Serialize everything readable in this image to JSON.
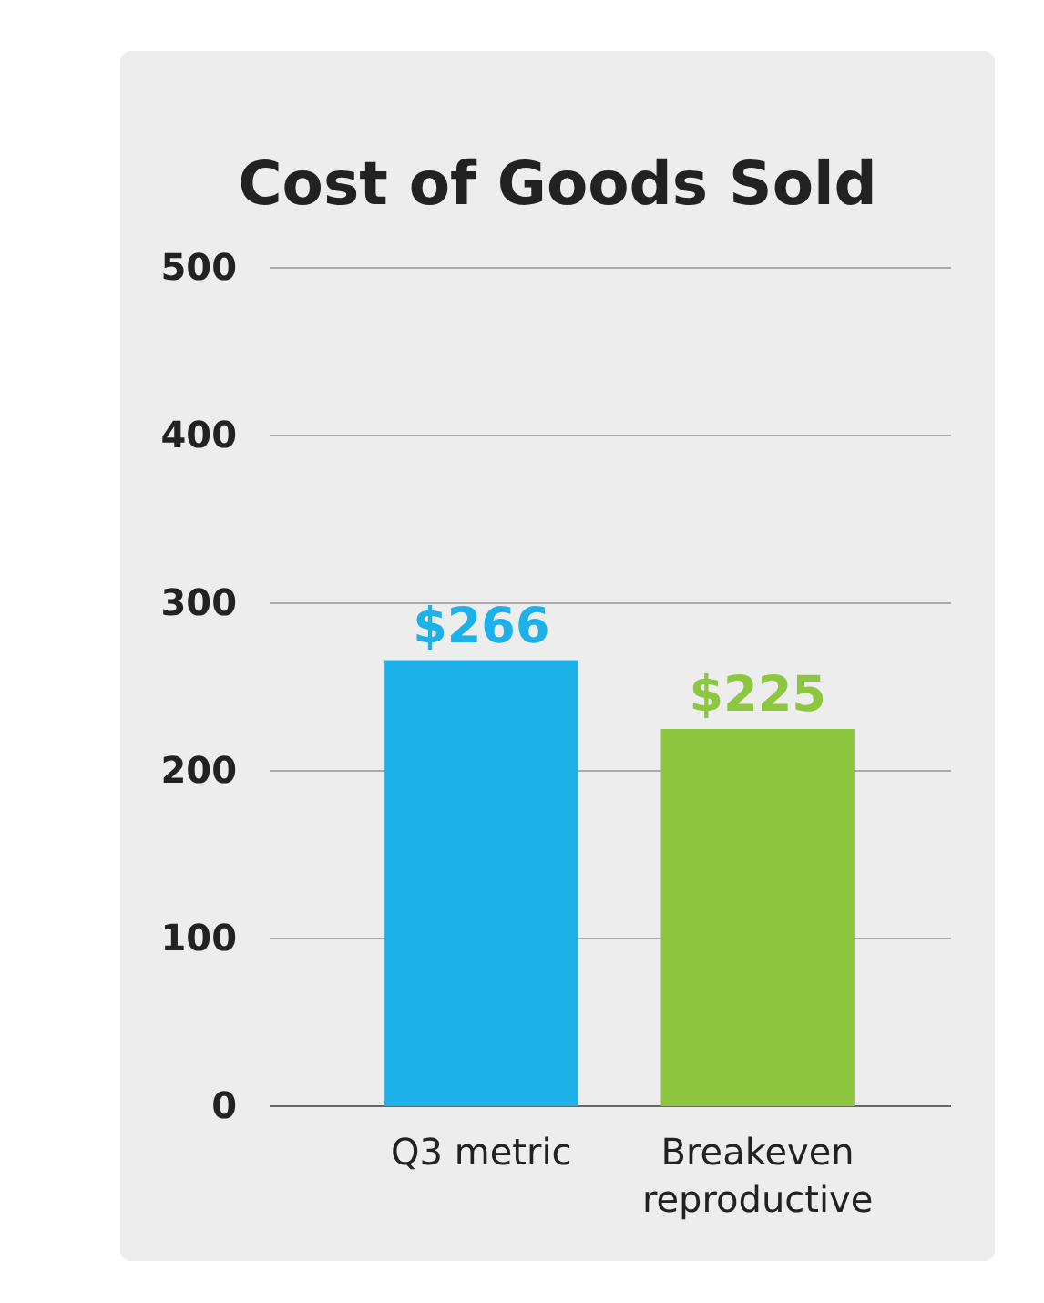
{
  "chart_data": {
    "type": "bar",
    "title": "Cost of Goods Sold",
    "categories": [
      "Q3 metric",
      "Breakeven reproductive"
    ],
    "values": [
      266,
      225
    ],
    "colors": [
      "#1db1e9",
      "#8dc63f"
    ],
    "value_labels": [
      "$266",
      "$225"
    ],
    "ylim": [
      0,
      500
    ],
    "yticks": [
      0,
      100,
      200,
      300,
      400,
      500
    ],
    "grid": "y"
  }
}
